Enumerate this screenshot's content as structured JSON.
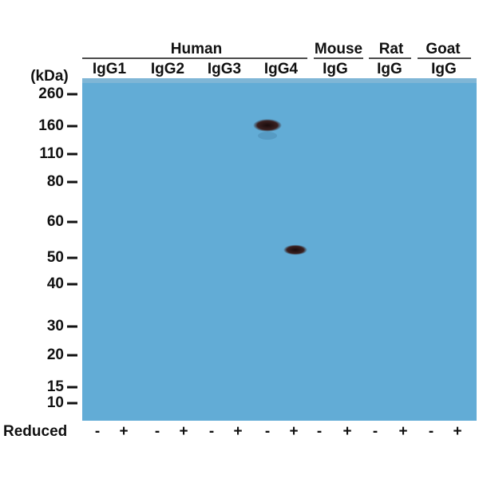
{
  "header": {
    "groups": [
      {
        "label": "Human",
        "subgroups": [
          "IgG1",
          "IgG2",
          "IgG3",
          "IgG4"
        ]
      },
      {
        "label": "Mouse",
        "subgroups": [
          "IgG"
        ]
      },
      {
        "label": "Rat",
        "subgroups": [
          "IgG"
        ]
      },
      {
        "label": "Goat",
        "subgroups": [
          "IgG"
        ]
      }
    ]
  },
  "axis": {
    "unit": "(kDa)",
    "markers": [
      "260",
      "160",
      "110",
      "80",
      "60",
      "50",
      "40",
      "30",
      "20",
      "15",
      "10"
    ]
  },
  "reduced": {
    "label": "Reduced",
    "lanes": [
      "-",
      "+",
      "-",
      "+",
      "-",
      "+",
      "-",
      "+",
      "-",
      "+",
      "-",
      "+",
      "-",
      "+"
    ]
  }
}
